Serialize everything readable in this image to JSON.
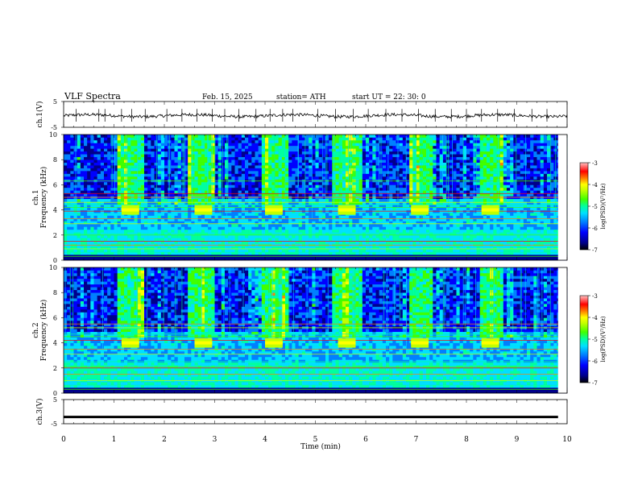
{
  "header": {
    "title": "VLF  Spectra",
    "date": "Feb. 15, 2025",
    "station": "station= ATH",
    "start": "start  UT  =    22: 30: 0"
  },
  "colormap": [
    "#000000",
    "#00008b",
    "#0000ff",
    "#0080ff",
    "#00e0ff",
    "#00ffa0",
    "#40ff00",
    "#c0ff00",
    "#ffff00",
    "#ff8000",
    "#ff0000",
    "#ffc0c0"
  ],
  "chart_data": [
    {
      "type": "line",
      "panel": "ch1-waveform",
      "ylabel": "ch.1(V)",
      "ylim": [
        -5,
        5
      ],
      "yticks": [
        "5",
        "-5"
      ],
      "xlim": [
        0,
        10
      ],
      "baseline_v": -0.5,
      "noise_amplitude_v": 0.6,
      "spike_times_min": [
        0.25,
        0.7,
        0.82,
        1.15,
        1.35,
        1.62,
        2.05,
        2.35,
        2.65,
        2.95,
        3.2,
        3.48,
        3.82,
        4.1,
        4.35,
        4.55,
        5.05,
        5.4,
        5.75,
        6.05,
        6.4,
        6.72,
        7.05,
        7.38,
        7.7,
        8.0,
        8.3,
        8.62,
        8.95,
        9.3,
        9.6
      ]
    },
    {
      "type": "heatmap",
      "panel": "ch1-spectrogram",
      "ylabel": "ch.1\nFrequency (kHz)",
      "ylabel_lines": [
        "ch.1",
        "Frequency (kHz)"
      ],
      "ylim": [
        0,
        10
      ],
      "yticks": [
        "0",
        "2",
        "4",
        "6",
        "8",
        "10"
      ],
      "xlim": [
        0,
        10
      ],
      "colorbar": {
        "label": "log(PSD)(V²/Hz)",
        "ticks": [
          "-3",
          "-4",
          "-5",
          "-6",
          "-7"
        ],
        "range": [
          -7,
          -3
        ]
      },
      "tone_bursts": [
        {
          "t_start": 1.15,
          "t_end": 1.5,
          "freq_khz": 4.0
        },
        {
          "t_start": 2.6,
          "t_end": 2.95,
          "freq_khz": 4.0
        },
        {
          "t_start": 4.0,
          "t_end": 4.35,
          "freq_khz": 4.0
        },
        {
          "t_start": 5.45,
          "t_end": 5.8,
          "freq_khz": 4.0
        },
        {
          "t_start": 6.9,
          "t_end": 7.25,
          "freq_khz": 4.0
        },
        {
          "t_start": 8.3,
          "t_end": 8.65,
          "freq_khz": 4.0
        }
      ],
      "active_windows": [
        [
          1.1,
          1.6
        ],
        [
          2.5,
          3.0
        ],
        [
          3.95,
          4.45
        ],
        [
          5.35,
          5.9
        ],
        [
          6.85,
          7.35
        ],
        [
          8.25,
          8.75
        ]
      ],
      "lines_khz": [
        0.3,
        0.6,
        0.9,
        1.2,
        1.5,
        2.0,
        2.1,
        2.9,
        3.3,
        3.9,
        4.2,
        4.4,
        4.6,
        5.0,
        5.3,
        6.3
      ]
    },
    {
      "type": "heatmap",
      "panel": "ch2-spectrogram",
      "ylabel": "ch.2\nFrequency (kHz)",
      "ylabel_lines": [
        "ch.2",
        "Frequency (kHz)"
      ],
      "ylim": [
        0,
        10
      ],
      "yticks": [
        "0",
        "2",
        "4",
        "6",
        "8",
        "10"
      ],
      "xlim": [
        0,
        10
      ],
      "colorbar": {
        "label": "log(PSD)(V²/Hz)",
        "ticks": [
          "-3",
          "-4",
          "-5",
          "-6",
          "-7"
        ],
        "range": [
          -7,
          -3
        ]
      },
      "tone_bursts": [
        {
          "t_start": 1.15,
          "t_end": 1.5,
          "freq_khz": 4.0
        },
        {
          "t_start": 2.6,
          "t_end": 2.95,
          "freq_khz": 4.0
        },
        {
          "t_start": 4.0,
          "t_end": 4.35,
          "freq_khz": 4.0
        },
        {
          "t_start": 5.45,
          "t_end": 5.8,
          "freq_khz": 4.0
        },
        {
          "t_start": 6.9,
          "t_end": 7.25,
          "freq_khz": 4.0
        },
        {
          "t_start": 8.3,
          "t_end": 8.65,
          "freq_khz": 4.0
        }
      ],
      "active_windows": [
        [
          1.1,
          1.6
        ],
        [
          2.5,
          3.0
        ],
        [
          3.95,
          4.45
        ],
        [
          5.35,
          5.9
        ],
        [
          6.85,
          7.35
        ],
        [
          8.25,
          8.75
        ]
      ],
      "lines_khz": [
        0.3,
        0.6,
        1.0,
        1.5,
        2.0,
        2.1,
        2.5,
        3.1,
        3.5,
        4.2,
        4.5,
        4.7,
        5.2,
        5.5
      ]
    },
    {
      "type": "line",
      "panel": "ch3-waveform",
      "ylabel": "ch.3(V)",
      "ylim": [
        -5,
        5
      ],
      "yticks": [
        "5",
        "-5"
      ],
      "xlim": [
        0,
        10
      ],
      "xlabel": "Time  (min)",
      "xticks": [
        "0",
        "1",
        "2",
        "3",
        "4",
        "5",
        "6",
        "7",
        "8",
        "9",
        "10"
      ],
      "level_v": -2.2
    }
  ]
}
